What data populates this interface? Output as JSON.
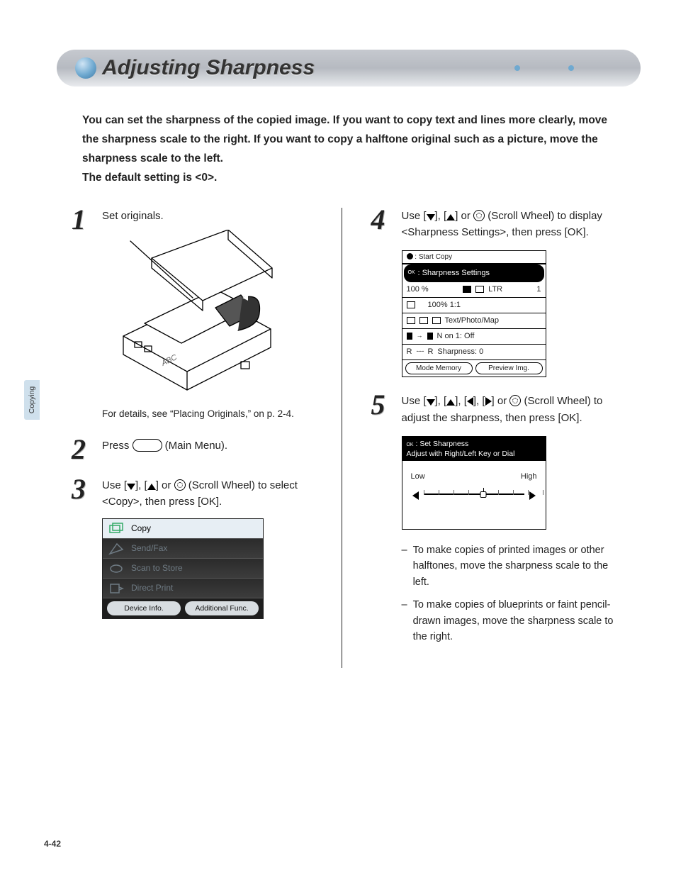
{
  "colors": {
    "bullet_gradient": [
      "#cfe4f4",
      "#6fa9d0",
      "#3e7aa6"
    ],
    "heading_gradient": [
      "#c6c9cf",
      "#b6bac1",
      "#e9ebee"
    ],
    "menu_selected_bg": "#e7eef4",
    "menu_dim_bg": "#2f2f2f",
    "menu_dim_text": "#6f7b84",
    "sidetab_bg": "#cfe0ec"
  },
  "heading": {
    "title": "Adjusting Sharpness"
  },
  "intro": {
    "p1": "You can set the sharpness of the copied image. If you want to copy text and lines more clearly, move the sharpness scale to the right. If you want to copy a halftone original such as a picture, move the sharpness scale to the left.",
    "p2": "The default setting is <0>."
  },
  "side_tab": "Copying",
  "page_number": "4-42",
  "steps": {
    "s1": {
      "num": "1",
      "text": "Set originals.",
      "caption": "For details, see “Placing Originals,” on p. 2-4."
    },
    "s2": {
      "num": "2",
      "pre": "Press ",
      "post": " (Main Menu)."
    },
    "s3": {
      "num": "3",
      "pre": "Use [",
      "mid1": "], [",
      "mid2": "] or ",
      "tail": " (Scroll Wheel) to select <Copy>, then press [OK].",
      "menu": {
        "items": [
          {
            "label": "Copy",
            "selected": true
          },
          {
            "label": "Send/Fax",
            "selected": false
          },
          {
            "label": "Scan to Store",
            "selected": false
          },
          {
            "label": "Direct Print",
            "selected": false
          }
        ],
        "footer_left": "Device Info.",
        "footer_right": "Additional Func."
      }
    },
    "s4": {
      "num": "4",
      "pre": "Use [",
      "mid1": "], [",
      "mid2": "] or ",
      "tail": " (Scroll Wheel) to display <Sharpness Settings>, then press [OK].",
      "lcd": {
        "top_strip": ": Start Copy",
        "selected": ": Sharpness Settings",
        "row_zoom_left": "100 %",
        "row_zoom_right": "LTR",
        "row_count": "1",
        "row_ratio": "100%  1:1",
        "row_type": "Text/Photo/Map",
        "row_non1": "N on 1: Off",
        "row_sharp_prefix": "R",
        "row_sharp_suffix": "R",
        "row_sharp": "Sharpness: 0",
        "footer_left": "Mode Memory",
        "footer_right": "Preview Img."
      }
    },
    "s5": {
      "num": "5",
      "pre": "Use [",
      "m1": "], [",
      "m2": "], [",
      "m3": "], [",
      "m4": "] or ",
      "tail": " (Scroll Wheel) to adjust the sharpness, then press [OK].",
      "lcd": {
        "head_l1": ": Set Sharpness",
        "head_l2": "Adjust with Right/Left Key or Dial",
        "low": "Low",
        "high": "High",
        "ticks": 9,
        "value_index": 4
      },
      "notes": {
        "a": "To make copies of printed images or other halftones, move the sharpness scale to the left.",
        "b": "To make copies of blueprints or faint pencil-drawn images, move the sharpness scale to the right."
      }
    }
  }
}
